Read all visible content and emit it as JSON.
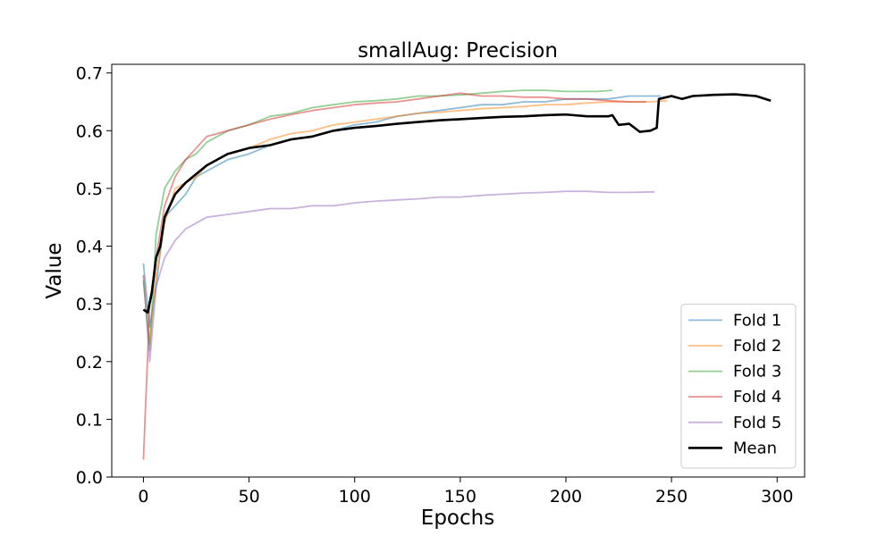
{
  "chart_data": {
    "type": "line",
    "title": "smallAug: Precision",
    "xlabel": "Epochs",
    "ylabel": "Value",
    "xlim": [
      -15,
      313
    ],
    "ylim": [
      0.0,
      0.715
    ],
    "xticks": [
      0,
      50,
      100,
      150,
      200,
      250,
      300
    ],
    "yticks": [
      0.0,
      0.1,
      0.2,
      0.3,
      0.4,
      0.5,
      0.6,
      0.7
    ],
    "xtick_labels": [
      "0",
      "50",
      "100",
      "150",
      "200",
      "250",
      "300"
    ],
    "ytick_labels": [
      "0.0",
      "0.1",
      "0.2",
      "0.3",
      "0.4",
      "0.5",
      "0.6",
      "0.7"
    ],
    "grid": false,
    "legend_position": "lower-right",
    "series": [
      {
        "name": "Fold 1",
        "color": "#1f77b4",
        "opacity": 0.5,
        "x": [
          0,
          3,
          6,
          10,
          15,
          20,
          25,
          30,
          40,
          50,
          60,
          70,
          80,
          90,
          100,
          110,
          120,
          130,
          140,
          150,
          160,
          170,
          180,
          190,
          200,
          210,
          220,
          230,
          240,
          245
        ],
        "y": [
          0.37,
          0.26,
          0.33,
          0.45,
          0.47,
          0.49,
          0.52,
          0.53,
          0.55,
          0.56,
          0.575,
          0.585,
          0.59,
          0.6,
          0.61,
          0.615,
          0.625,
          0.63,
          0.635,
          0.64,
          0.645,
          0.645,
          0.65,
          0.65,
          0.655,
          0.655,
          0.655,
          0.66,
          0.66,
          0.66
        ]
      },
      {
        "name": "Fold 2",
        "color": "#ff7f0e",
        "opacity": 0.5,
        "x": [
          0,
          3,
          6,
          10,
          15,
          20,
          25,
          30,
          40,
          50,
          60,
          70,
          80,
          90,
          100,
          110,
          120,
          130,
          140,
          150,
          160,
          170,
          180,
          190,
          200,
          210,
          220,
          230,
          240,
          248
        ],
        "y": [
          0.35,
          0.23,
          0.35,
          0.44,
          0.5,
          0.51,
          0.52,
          0.54,
          0.56,
          0.57,
          0.585,
          0.595,
          0.6,
          0.61,
          0.615,
          0.62,
          0.625,
          0.63,
          0.632,
          0.635,
          0.638,
          0.64,
          0.642,
          0.645,
          0.645,
          0.648,
          0.65,
          0.65,
          0.65,
          0.652
        ]
      },
      {
        "name": "Fold 3",
        "color": "#2ca02c",
        "opacity": 0.5,
        "x": [
          0,
          3,
          6,
          10,
          15,
          20,
          25,
          30,
          40,
          50,
          60,
          70,
          80,
          90,
          100,
          110,
          120,
          130,
          140,
          150,
          160,
          170,
          180,
          190,
          200,
          210,
          215,
          222
        ],
        "y": [
          0.34,
          0.22,
          0.42,
          0.5,
          0.53,
          0.55,
          0.56,
          0.58,
          0.6,
          0.61,
          0.625,
          0.63,
          0.64,
          0.645,
          0.65,
          0.652,
          0.655,
          0.66,
          0.66,
          0.662,
          0.665,
          0.668,
          0.67,
          0.67,
          0.668,
          0.668,
          0.668,
          0.67
        ]
      },
      {
        "name": "Fold 4",
        "color": "#d62728",
        "opacity": 0.5,
        "x": [
          0,
          3,
          6,
          10,
          15,
          20,
          25,
          30,
          40,
          50,
          60,
          70,
          80,
          90,
          100,
          110,
          120,
          130,
          140,
          150,
          160,
          170,
          180,
          190,
          200,
          210,
          220,
          230,
          238
        ],
        "y": [
          0.03,
          0.3,
          0.38,
          0.47,
          0.52,
          0.55,
          0.57,
          0.59,
          0.6,
          0.61,
          0.62,
          0.628,
          0.635,
          0.64,
          0.645,
          0.648,
          0.65,
          0.655,
          0.66,
          0.665,
          0.66,
          0.66,
          0.658,
          0.658,
          0.655,
          0.655,
          0.652,
          0.65,
          0.65
        ]
      },
      {
        "name": "Fold 5",
        "color": "#9467bd",
        "opacity": 0.5,
        "x": [
          0,
          3,
          6,
          10,
          15,
          20,
          25,
          30,
          40,
          50,
          60,
          70,
          80,
          90,
          100,
          110,
          120,
          130,
          140,
          150,
          160,
          170,
          180,
          190,
          200,
          210,
          220,
          230,
          242
        ],
        "y": [
          0.35,
          0.2,
          0.33,
          0.38,
          0.41,
          0.43,
          0.44,
          0.45,
          0.455,
          0.46,
          0.465,
          0.465,
          0.47,
          0.47,
          0.475,
          0.478,
          0.48,
          0.482,
          0.485,
          0.485,
          0.488,
          0.49,
          0.492,
          0.493,
          0.495,
          0.495,
          0.493,
          0.493,
          0.494
        ]
      },
      {
        "name": "Mean",
        "color": "#000000",
        "opacity": 1.0,
        "x": [
          0,
          2,
          4,
          6,
          8,
          10,
          15,
          20,
          25,
          30,
          40,
          50,
          60,
          70,
          80,
          90,
          100,
          110,
          120,
          130,
          140,
          150,
          160,
          170,
          180,
          190,
          200,
          210,
          220,
          222,
          225,
          230,
          235,
          240,
          243,
          244,
          250,
          255,
          260,
          270,
          280,
          290,
          297
        ],
        "y": [
          0.29,
          0.285,
          0.32,
          0.38,
          0.4,
          0.45,
          0.49,
          0.51,
          0.525,
          0.54,
          0.56,
          0.57,
          0.575,
          0.585,
          0.59,
          0.6,
          0.605,
          0.608,
          0.612,
          0.615,
          0.618,
          0.62,
          0.622,
          0.624,
          0.625,
          0.627,
          0.628,
          0.625,
          0.625,
          0.627,
          0.61,
          0.612,
          0.598,
          0.6,
          0.605,
          0.655,
          0.66,
          0.655,
          0.66,
          0.662,
          0.663,
          0.66,
          0.652
        ]
      }
    ]
  }
}
